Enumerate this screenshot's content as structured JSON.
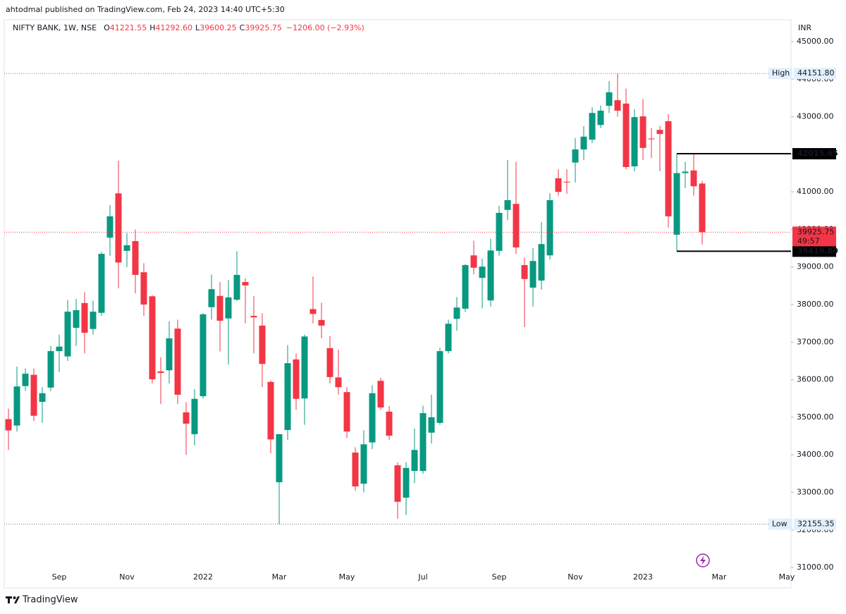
{
  "chart_data": {
    "type": "candlestick",
    "published_by": "ahtodmal published on TradingView.com, Feb 24, 2023 14:40 UTC+5:30",
    "legend": {
      "name": "NIFTY BANK, 1W, NSE",
      "fields": [
        {
          "key": "O",
          "value": "41221.55"
        },
        {
          "key": "H",
          "value": "41292.60"
        },
        {
          "key": "L",
          "value": "39600.25"
        },
        {
          "key": "C",
          "value": "39925.75"
        }
      ],
      "change": "−1206.00 (−2.93%)"
    },
    "unit": "INR",
    "up_color": "#089981",
    "down_color": "#f23645",
    "categories": [
      null,
      null,
      null,
      null,
      null,
      null,
      "Sep",
      null,
      null,
      null,
      null,
      null,
      null,
      null,
      "Nov",
      null,
      null,
      null,
      null,
      null,
      null,
      null,
      null,
      "2022",
      null,
      null,
      null,
      null,
      null,
      null,
      null,
      null,
      "Mar",
      null,
      null,
      null,
      null,
      null,
      null,
      null,
      "May",
      null,
      null,
      null,
      null,
      null,
      null,
      null,
      null,
      "Jul",
      null,
      null,
      null,
      null,
      null,
      null,
      null,
      null,
      "Sep",
      null,
      null,
      null,
      null,
      null,
      null,
      null,
      null,
      "Nov",
      null,
      null,
      null,
      null,
      null,
      null,
      null,
      "2023",
      null,
      null,
      null,
      null,
      null,
      null,
      null,
      null,
      "Mar",
      null,
      null,
      null,
      null,
      null,
      null,
      null,
      "May"
    ],
    "open": [
      34950,
      34780,
      35830,
      36130,
      35410,
      35790,
      36760,
      36620,
      37380,
      38040,
      37350,
      37780,
      39780,
      40960,
      39430,
      39690,
      38860,
      38220,
      36220,
      36250,
      37360,
      35130,
      34550,
      35560,
      37930,
      38230,
      37630,
      38130,
      38600,
      37700,
      37440,
      35940,
      33270,
      34660,
      36540,
      35500,
      37880,
      37590,
      36840,
      36060,
      35670,
      34060,
      33230,
      34330,
      35970,
      35150,
      33720,
      32860,
      33570,
      33570,
      34590,
      34850,
      36760,
      37620,
      37890,
      39310,
      38710,
      38110,
      39430,
      40520,
      40680,
      39050,
      38450,
      38640,
      39310,
      41360,
      41270,
      41780,
      42130,
      42390,
      42780,
      43290,
      43440,
      43350,
      41680,
      43010,
      42420,
      42650,
      42880,
      39860,
      41500,
      41570,
      41221.55,
      null,
      null,
      null,
      null,
      null,
      null,
      null,
      null,
      null,
      null
    ],
    "high": [
      35230,
      36350,
      36300,
      36300,
      35800,
      36900,
      37200,
      38120,
      38150,
      38330,
      38100,
      39400,
      40650,
      41830,
      39900,
      40000,
      39100,
      38250,
      36600,
      37550,
      37600,
      35400,
      35750,
      37770,
      38800,
      38600,
      38650,
      39420,
      38700,
      38230,
      37770,
      35980,
      34550,
      36920,
      36700,
      37200,
      38750,
      38050,
      37160,
      36800,
      35800,
      34200,
      34650,
      35850,
      36050,
      35300,
      33800,
      33800,
      34700,
      35310,
      35600,
      36850,
      37600,
      38200,
      39080,
      39700,
      39220,
      39750,
      40630,
      41850,
      41800,
      39250,
      39500,
      40200,
      40960,
      41600,
      41600,
      42430,
      42750,
      43250,
      43300,
      43950,
      44151.8,
      43750,
      43200,
      43470,
      42700,
      42750,
      43070,
      42015.65,
      41800,
      42015.65,
      41292.6,
      null,
      null,
      null,
      null,
      null,
      null,
      null,
      null,
      null,
      null
    ],
    "low": [
      34130,
      34620,
      35700,
      34900,
      34850,
      35700,
      36200,
      36500,
      36900,
      36700,
      37200,
      37700,
      39300,
      38430,
      39000,
      38300,
      37700,
      35900,
      35350,
      35900,
      35350,
      34000,
      34250,
      35500,
      37600,
      36750,
      36400,
      38100,
      37500,
      36700,
      35800,
      34040,
      32155.35,
      34400,
      35200,
      34800,
      37500,
      37100,
      35900,
      35600,
      34450,
      33050,
      33000,
      34150,
      35200,
      34400,
      32300,
      32400,
      33250,
      33500,
      34300,
      34800,
      36700,
      37300,
      37800,
      38800,
      37900,
      37950,
      39300,
      40250,
      39350,
      37400,
      37950,
      38400,
      39200,
      40900,
      40950,
      41250,
      41850,
      42300,
      42700,
      43100,
      43000,
      41600,
      41550,
      41850,
      41900,
      41550,
      40050,
      39419.8,
      41100,
      40900,
      39600.25,
      null,
      null,
      null,
      null,
      null,
      null,
      null,
      null,
      null,
      null
    ],
    "close": [
      34650,
      35820,
      36160,
      35040,
      35640,
      36760,
      36880,
      37810,
      37850,
      37250,
      37810,
      39350,
      40350,
      39120,
      39580,
      38790,
      38000,
      36010,
      36180,
      37100,
      35600,
      34830,
      35490,
      37740,
      38410,
      37570,
      38190,
      38790,
      38510,
      37660,
      36420,
      34410,
      34550,
      36440,
      35490,
      37150,
      37750,
      37440,
      36070,
      35800,
      34620,
      33160,
      34280,
      35640,
      35260,
      34510,
      32750,
      33650,
      34130,
      35110,
      35000,
      36760,
      37490,
      37920,
      39050,
      38980,
      39010,
      39440,
      40440,
      40780,
      39520,
      38680,
      39160,
      39610,
      40780,
      41000,
      41250,
      42130,
      42470,
      43100,
      43160,
      43650,
      43160,
      41660,
      42990,
      42170,
      42400,
      42540,
      40350,
      41500,
      41540,
      41150,
      39925.75,
      null,
      null,
      null,
      null,
      null,
      null,
      null,
      null,
      null,
      null
    ],
    "ylim": [
      30457,
      45582
    ],
    "yticks": [
      {
        "value": 31000,
        "label": "31000.00"
      },
      {
        "value": 32000,
        "label": "32000.00"
      },
      {
        "value": 33000,
        "label": "33000.00"
      },
      {
        "value": 34000,
        "label": "34000.00"
      },
      {
        "value": 35000,
        "label": "35000.00"
      },
      {
        "value": 36000,
        "label": "36000.00"
      },
      {
        "value": 37000,
        "label": "37000.00"
      },
      {
        "value": 38000,
        "label": "38000.00"
      },
      {
        "value": 39000,
        "label": "39000.00"
      },
      {
        "value": 40000,
        "label": "40000.00"
      },
      {
        "value": 41000,
        "label": "41000.00"
      },
      {
        "value": 42000,
        "label": "42000.00"
      },
      {
        "value": 43000,
        "label": "43000.00"
      },
      {
        "value": 44000,
        "label": "44000.00"
      },
      {
        "value": 45000,
        "label": "45000.00"
      }
    ],
    "high_marker": {
      "label": "High",
      "price": 44151.8,
      "price_label": "44151.80"
    },
    "low_marker": {
      "label": "Low",
      "price": 32155.35,
      "price_label": "32155.35"
    },
    "last_price": 39925.75,
    "countdown": "49:57",
    "levels": [
      42015.65,
      {
        "value": 39419.8,
        "label": "39419.80"
      }
    ],
    "footer": "TradingView"
  }
}
